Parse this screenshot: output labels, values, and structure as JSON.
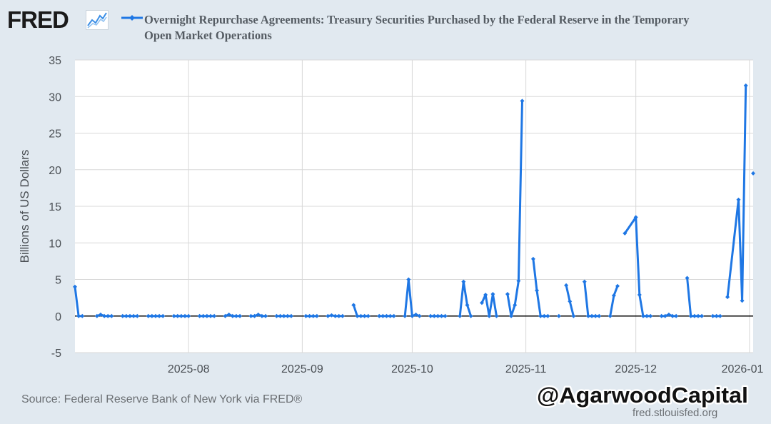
{
  "header": {
    "logo_text": "FRED",
    "title": "Overnight Repurchase Agreements: Treasury Securities Purchased by the Federal Reserve in the Temporary Open Market Operations"
  },
  "footer": {
    "source": "Source: Federal Reserve Bank of New York via FRED®",
    "site": "fred.stlouisfed.org",
    "watermark": "@AgarwoodCapital"
  },
  "colors": {
    "series": "#1f77e4",
    "background": "#e1e9f0",
    "plot_background": "#ffffff",
    "gridline": "#d8d8d8",
    "zero_line": "#000000"
  },
  "chart_data": {
    "type": "line",
    "ylabel": "Billions of US Dollars",
    "ylim": [
      -5,
      35
    ],
    "yticks": [
      -5,
      0,
      5,
      10,
      15,
      20,
      25,
      30,
      35
    ],
    "xlim": [
      "2025-07-01",
      "2026-01-02"
    ],
    "xticks": [
      "2025-08-01",
      "2025-09-01",
      "2025-10-01",
      "2025-11-01",
      "2025-12-01",
      "2026-01-01"
    ],
    "xtick_labels": [
      "2025-08",
      "2025-09",
      "2025-10",
      "2025-11",
      "2025-12",
      "2026-01"
    ],
    "grid": true,
    "series": [
      {
        "name": "Overnight Repurchase Agreements: Treasury Securities Purchased by the Federal Reserve in the Temporary Open Market Operations",
        "segments": [
          [
            [
              "2025-07-01",
              4.0
            ],
            [
              "2025-07-02",
              0
            ],
            [
              "2025-07-03",
              0
            ]
          ],
          [
            [
              "2025-07-07",
              0
            ],
            [
              "2025-07-08",
              0.2
            ],
            [
              "2025-07-09",
              0
            ],
            [
              "2025-07-10",
              0
            ],
            [
              "2025-07-11",
              0
            ]
          ],
          [
            [
              "2025-07-14",
              0
            ],
            [
              "2025-07-15",
              0
            ],
            [
              "2025-07-16",
              0
            ],
            [
              "2025-07-17",
              0
            ],
            [
              "2025-07-18",
              0
            ]
          ],
          [
            [
              "2025-07-21",
              0
            ],
            [
              "2025-07-22",
              0
            ],
            [
              "2025-07-23",
              0
            ],
            [
              "2025-07-24",
              0
            ],
            [
              "2025-07-25",
              0
            ]
          ],
          [
            [
              "2025-07-28",
              0
            ],
            [
              "2025-07-29",
              0
            ],
            [
              "2025-07-30",
              0
            ],
            [
              "2025-07-31",
              0
            ],
            [
              "2025-08-01",
              0
            ]
          ],
          [
            [
              "2025-08-04",
              0
            ],
            [
              "2025-08-05",
              0
            ],
            [
              "2025-08-06",
              0
            ],
            [
              "2025-08-07",
              0
            ],
            [
              "2025-08-08",
              0
            ]
          ],
          [
            [
              "2025-08-11",
              0
            ],
            [
              "2025-08-12",
              0.2
            ],
            [
              "2025-08-13",
              0
            ],
            [
              "2025-08-14",
              0
            ],
            [
              "2025-08-15",
              0
            ]
          ],
          [
            [
              "2025-08-18",
              0
            ],
            [
              "2025-08-19",
              0
            ],
            [
              "2025-08-20",
              0.2
            ],
            [
              "2025-08-21",
              0
            ],
            [
              "2025-08-22",
              0
            ]
          ],
          [
            [
              "2025-08-25",
              0
            ],
            [
              "2025-08-26",
              0
            ],
            [
              "2025-08-27",
              0
            ],
            [
              "2025-08-28",
              0
            ],
            [
              "2025-08-29",
              0
            ]
          ],
          [
            [
              "2025-09-02",
              0
            ],
            [
              "2025-09-03",
              0
            ],
            [
              "2025-09-04",
              0
            ],
            [
              "2025-09-05",
              0
            ]
          ],
          [
            [
              "2025-09-08",
              0
            ],
            [
              "2025-09-09",
              0.1
            ],
            [
              "2025-09-10",
              0
            ],
            [
              "2025-09-11",
              0
            ],
            [
              "2025-09-12",
              0
            ]
          ],
          [
            [
              "2025-09-15",
              1.5
            ],
            [
              "2025-09-16",
              0
            ],
            [
              "2025-09-17",
              0
            ],
            [
              "2025-09-18",
              0
            ],
            [
              "2025-09-19",
              0
            ]
          ],
          [
            [
              "2025-09-22",
              0
            ],
            [
              "2025-09-23",
              0
            ],
            [
              "2025-09-24",
              0
            ],
            [
              "2025-09-25",
              0
            ],
            [
              "2025-09-26",
              0
            ]
          ],
          [
            [
              "2025-09-29",
              0
            ],
            [
              "2025-09-30",
              5.0
            ],
            [
              "2025-10-01",
              0
            ],
            [
              "2025-10-02",
              0.2
            ],
            [
              "2025-10-03",
              0
            ]
          ],
          [
            [
              "2025-10-06",
              0
            ],
            [
              "2025-10-07",
              0
            ],
            [
              "2025-10-08",
              0
            ],
            [
              "2025-10-09",
              0
            ],
            [
              "2025-10-10",
              0
            ]
          ],
          [
            [
              "2025-10-14",
              0
            ],
            [
              "2025-10-15",
              4.7
            ],
            [
              "2025-10-16",
              1.5
            ],
            [
              "2025-10-17",
              0
            ]
          ],
          [
            [
              "2025-10-20",
              1.8
            ],
            [
              "2025-10-21",
              2.9
            ],
            [
              "2025-10-22",
              0
            ],
            [
              "2025-10-23",
              3.0
            ],
            [
              "2025-10-24",
              0
            ]
          ],
          [
            [
              "2025-10-27",
              3.0
            ],
            [
              "2025-10-28",
              0
            ],
            [
              "2025-10-29",
              1.5
            ],
            [
              "2025-10-30",
              4.8
            ],
            [
              "2025-10-31",
              29.4
            ]
          ],
          [
            [
              "2025-11-03",
              7.8
            ],
            [
              "2025-11-04",
              3.5
            ],
            [
              "2025-11-05",
              0
            ],
            [
              "2025-11-06",
              0
            ],
            [
              "2025-11-07",
              0
            ]
          ],
          [
            [
              "2025-11-10",
              0
            ]
          ],
          [
            [
              "2025-11-12",
              4.2
            ],
            [
              "2025-11-13",
              2.0
            ],
            [
              "2025-11-14",
              0
            ]
          ],
          [
            [
              "2025-11-17",
              4.7
            ],
            [
              "2025-11-18",
              0
            ],
            [
              "2025-11-19",
              0
            ],
            [
              "2025-11-20",
              0
            ],
            [
              "2025-11-21",
              0
            ]
          ],
          [
            [
              "2025-11-24",
              0
            ],
            [
              "2025-11-25",
              2.8
            ],
            [
              "2025-11-26",
              4.1
            ]
          ],
          [
            [
              "2025-11-28",
              11.3
            ],
            [
              "2025-12-01",
              13.5
            ],
            [
              "2025-12-02",
              2.9
            ],
            [
              "2025-12-03",
              0
            ],
            [
              "2025-12-04",
              0
            ],
            [
              "2025-12-05",
              0
            ]
          ],
          [
            [
              "2025-12-08",
              0
            ],
            [
              "2025-12-09",
              0
            ],
            [
              "2025-12-10",
              0.2
            ],
            [
              "2025-12-11",
              0
            ],
            [
              "2025-12-12",
              0
            ]
          ],
          [
            [
              "2025-12-15",
              5.2
            ],
            [
              "2025-12-16",
              0
            ],
            [
              "2025-12-17",
              0
            ],
            [
              "2025-12-18",
              0
            ],
            [
              "2025-12-19",
              0
            ]
          ],
          [
            [
              "2025-12-22",
              0
            ],
            [
              "2025-12-23",
              0
            ],
            [
              "2025-12-24",
              0
            ]
          ],
          [
            [
              "2025-12-26",
              2.6
            ],
            [
              "2025-12-29",
              15.9
            ],
            [
              "2025-12-30",
              2.1
            ],
            [
              "2025-12-31",
              31.5
            ]
          ],
          [
            [
              "2026-01-02",
              19.5
            ]
          ]
        ]
      }
    ]
  }
}
